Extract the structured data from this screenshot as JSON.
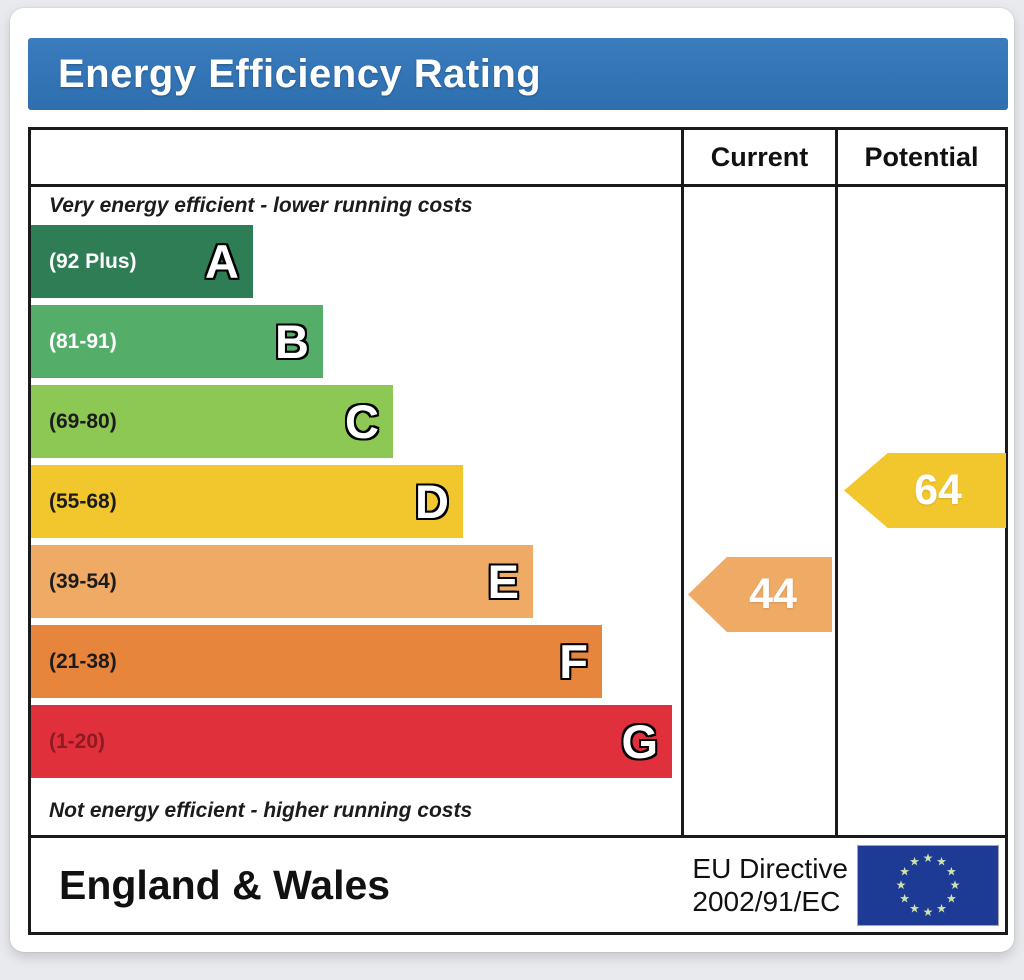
{
  "title": "Energy Efficiency Rating",
  "columns": {
    "current": "Current",
    "potential": "Potential"
  },
  "notes": {
    "top": "Very energy efficient - lower running costs",
    "bottom": "Not energy efficient - higher running costs"
  },
  "chart_data": {
    "type": "bar",
    "title": "Energy Efficiency Rating",
    "bands": [
      {
        "letter": "A",
        "range": "(92 Plus)",
        "color": "#2e7d55"
      },
      {
        "letter": "B",
        "range": "(81-91)",
        "color": "#54ad69"
      },
      {
        "letter": "C",
        "range": "(69-80)",
        "color": "#8ec854"
      },
      {
        "letter": "D",
        "range": "(55-68)",
        "color": "#f2c72e"
      },
      {
        "letter": "E",
        "range": "(39-54)",
        "color": "#efaa65"
      },
      {
        "letter": "F",
        "range": "(21-38)",
        "color": "#e8853c"
      },
      {
        "letter": "G",
        "range": "(1-20)",
        "color": "#e0303c"
      }
    ],
    "current": {
      "value": 44,
      "band": "E",
      "color": "#efaa65"
    },
    "potential": {
      "value": 64,
      "band": "D",
      "color": "#f2c72e"
    }
  },
  "footer": {
    "region": "England & Wales",
    "directive_line1": "EU Directive",
    "directive_line2": "2002/91/EC"
  },
  "colors": {
    "title_bar": "#3274b5",
    "table_border": "#1a1a1a",
    "eu_flag_blue": "#1d3b94",
    "eu_star": "#cfe2ae"
  }
}
